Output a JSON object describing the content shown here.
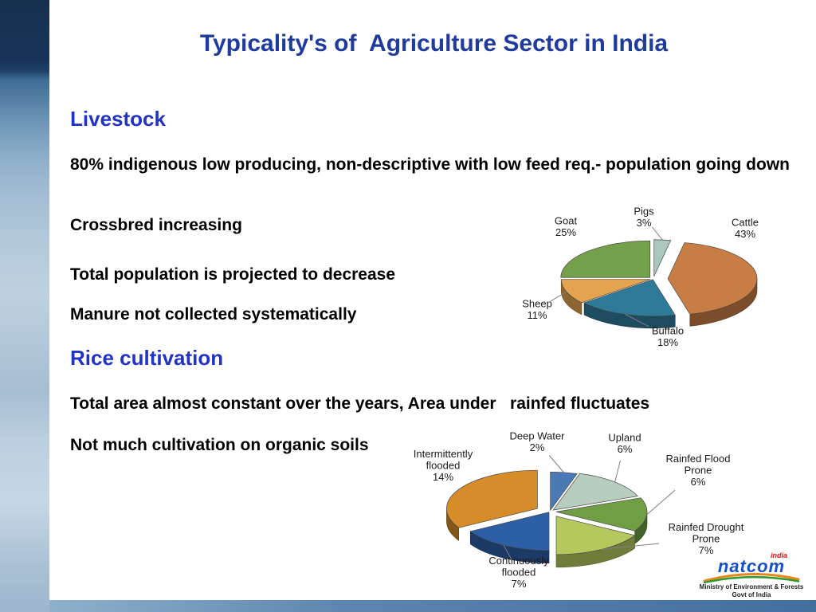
{
  "slide": {
    "title": "Typicality's of  Agriculture Sector in India",
    "sections": [
      {
        "heading": "Livestock",
        "paragraphs": [
          "80% indigenous low producing, non-descriptive with low feed req.- population going down",
          "Crossbred increasing",
          "Total population is projected to decrease",
          "Manure not collected systematically"
        ]
      },
      {
        "heading": "Rice cultivation",
        "paragraphs": [
          "Total area almost constant over the years, Area under   rainfed fluctuates",
          "Not much cultivation on organic soils"
        ]
      }
    ]
  },
  "footer": {
    "logo_text": "natcom",
    "logo_sup": "india",
    "ministry_line1": "Ministry of Environment & Forests",
    "ministry_line2": "Govt of India"
  },
  "chart_data": [
    {
      "type": "pie",
      "name": "livestock-population-share",
      "style": "3d-exploded-pie",
      "legend_position": "none",
      "value_suffix": "%",
      "labels": [
        "Pigs",
        "Cattle",
        "Buffalo",
        "Sheep",
        "Goat"
      ],
      "values": [
        3,
        43,
        18,
        11,
        25
      ],
      "colors": [
        "#a9c7bd",
        "#c87d45",
        "#2e7b99",
        "#e3a34f",
        "#74a04b"
      ],
      "explode": [
        8,
        18,
        2,
        4,
        6
      ]
    },
    {
      "type": "pie",
      "name": "rice-cultivation-area-share",
      "style": "3d-exploded-pie",
      "legend_position": "none",
      "value_suffix": "%",
      "labels": [
        "Deep Water",
        "Upland",
        "Rainfed Flood Prone",
        "Rainfed Drought Prone",
        "Continuously flooded",
        "Intermittently flooded"
      ],
      "values": [
        2,
        6,
        6,
        7,
        7,
        14
      ],
      "colors": [
        "#4a7ab5",
        "#b7cdbd",
        "#6f9e45",
        "#b4c85e",
        "#2c5fa5",
        "#d68c28"
      ],
      "explode": [
        4,
        6,
        8,
        16,
        2,
        18
      ]
    }
  ]
}
